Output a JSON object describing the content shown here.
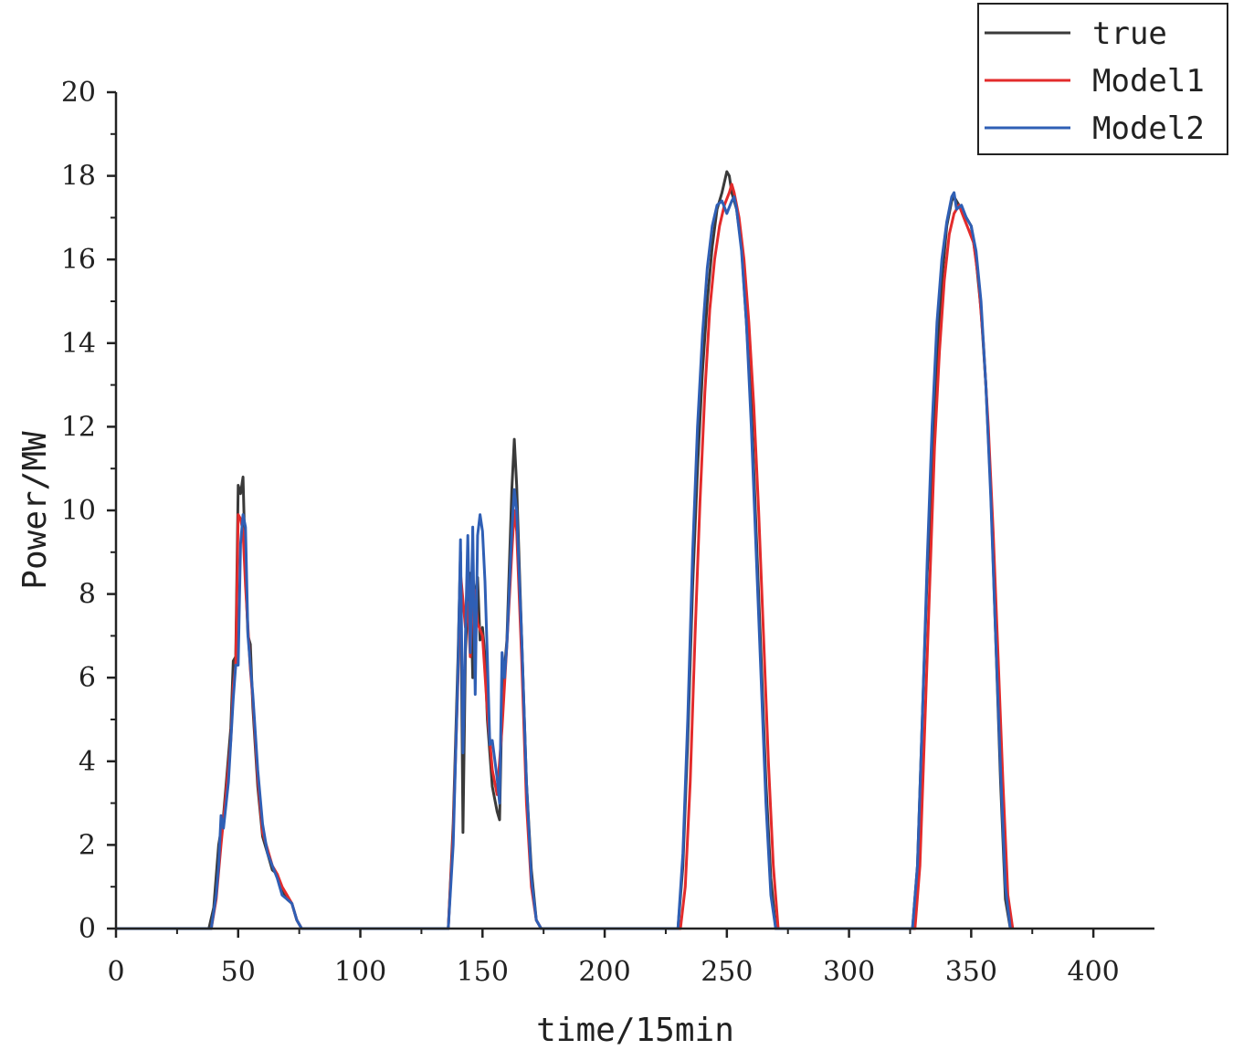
{
  "chart_data": {
    "type": "line",
    "xlabel": "time/15min",
    "ylabel": "Power/MW",
    "xlim": [
      0,
      425
    ],
    "ylim": [
      0,
      20
    ],
    "xticks": [
      0,
      50,
      100,
      150,
      200,
      250,
      300,
      350,
      400
    ],
    "yticks": [
      0,
      2,
      4,
      6,
      8,
      10,
      12,
      14,
      16,
      18,
      20
    ],
    "grid": false,
    "legend_position": "top-right",
    "series": [
      {
        "name": "true",
        "color": "#3a3a3a",
        "points": [
          [
            0,
            0
          ],
          [
            38,
            0
          ],
          [
            40,
            0.5
          ],
          [
            42,
            2.0
          ],
          [
            44,
            2.7
          ],
          [
            45,
            3.4
          ],
          [
            47,
            4.8
          ],
          [
            48,
            6.4
          ],
          [
            49,
            6.5
          ],
          [
            50,
            10.6
          ],
          [
            51,
            10.4
          ],
          [
            52,
            10.8
          ],
          [
            53,
            8.5
          ],
          [
            54,
            7.0
          ],
          [
            55,
            6.8
          ],
          [
            56,
            5.3
          ],
          [
            58,
            3.4
          ],
          [
            60,
            2.2
          ],
          [
            62,
            1.8
          ],
          [
            64,
            1.4
          ],
          [
            66,
            1.3
          ],
          [
            68,
            0.9
          ],
          [
            70,
            0.7
          ],
          [
            72,
            0.6
          ],
          [
            74,
            0.2
          ],
          [
            76,
            0
          ],
          [
            136,
            0
          ],
          [
            138,
            2.5
          ],
          [
            140,
            6.5
          ],
          [
            141,
            9.0
          ],
          [
            142,
            2.3
          ],
          [
            143,
            6.6
          ],
          [
            144,
            8.0
          ],
          [
            145,
            8.5
          ],
          [
            146,
            6.0
          ],
          [
            147,
            8.0
          ],
          [
            148,
            8.4
          ],
          [
            149,
            6.9
          ],
          [
            150,
            7.2
          ],
          [
            151,
            6.5
          ],
          [
            152,
            5.0
          ],
          [
            154,
            3.4
          ],
          [
            156,
            2.8
          ],
          [
            157,
            2.6
          ],
          [
            158,
            5.5
          ],
          [
            160,
            6.9
          ],
          [
            162,
            10.5
          ],
          [
            163,
            11.7
          ],
          [
            164,
            10.6
          ],
          [
            166,
            7.0
          ],
          [
            168,
            3.5
          ],
          [
            170,
            1.4
          ],
          [
            172,
            0.2
          ],
          [
            174,
            0
          ],
          [
            230,
            0
          ],
          [
            232,
            1.5
          ],
          [
            234,
            4.5
          ],
          [
            236,
            8.2
          ],
          [
            238,
            11.0
          ],
          [
            240,
            13.3
          ],
          [
            242,
            15.0
          ],
          [
            244,
            16.3
          ],
          [
            246,
            17.2
          ],
          [
            248,
            17.6
          ],
          [
            250,
            18.1
          ],
          [
            251,
            18.0
          ],
          [
            252,
            17.6
          ],
          [
            254,
            17.2
          ],
          [
            256,
            16.3
          ],
          [
            258,
            14.5
          ],
          [
            260,
            12.5
          ],
          [
            262,
            9.5
          ],
          [
            264,
            6.5
          ],
          [
            266,
            3.5
          ],
          [
            268,
            1.2
          ],
          [
            270,
            0
          ],
          [
            326,
            0
          ],
          [
            328,
            1.5
          ],
          [
            330,
            5.0
          ],
          [
            332,
            8.5
          ],
          [
            334,
            10.5
          ],
          [
            335,
            12.1
          ],
          [
            336,
            13.5
          ],
          [
            338,
            15.5
          ],
          [
            340,
            16.8
          ],
          [
            342,
            17.4
          ],
          [
            343,
            17.5
          ],
          [
            344,
            17.4
          ],
          [
            346,
            17.2
          ],
          [
            348,
            17.0
          ],
          [
            350,
            16.8
          ],
          [
            352,
            16.0
          ],
          [
            354,
            14.8
          ],
          [
            356,
            13.0
          ],
          [
            358,
            10.5
          ],
          [
            360,
            7.0
          ],
          [
            362,
            3.5
          ],
          [
            364,
            0.7
          ],
          [
            366,
            0
          ]
        ]
      },
      {
        "name": "Model1",
        "color": "#e32b2b",
        "points": [
          [
            0,
            0
          ],
          [
            39,
            0
          ],
          [
            41,
            0.7
          ],
          [
            43,
            2.0
          ],
          [
            45,
            3.2
          ],
          [
            47,
            4.5
          ],
          [
            48,
            5.8
          ],
          [
            49,
            6.3
          ],
          [
            50,
            9.9
          ],
          [
            51,
            9.8
          ],
          [
            52,
            9.5
          ],
          [
            53,
            8.2
          ],
          [
            54,
            7.2
          ],
          [
            55,
            6.2
          ],
          [
            56,
            5.5
          ],
          [
            58,
            3.6
          ],
          [
            60,
            2.3
          ],
          [
            62,
            1.9
          ],
          [
            64,
            1.5
          ],
          [
            66,
            1.3
          ],
          [
            68,
            1.0
          ],
          [
            70,
            0.8
          ],
          [
            72,
            0.6
          ],
          [
            74,
            0.2
          ],
          [
            76,
            0
          ],
          [
            136,
            0
          ],
          [
            138,
            2.3
          ],
          [
            140,
            6.0
          ],
          [
            141,
            8.5
          ],
          [
            143,
            7.2
          ],
          [
            144,
            7.8
          ],
          [
            145,
            6.5
          ],
          [
            146,
            8.2
          ],
          [
            147,
            8.0
          ],
          [
            148,
            7.3
          ],
          [
            150,
            7.0
          ],
          [
            152,
            5.2
          ],
          [
            154,
            3.8
          ],
          [
            156,
            3.2
          ],
          [
            158,
            4.8
          ],
          [
            160,
            6.8
          ],
          [
            162,
            9.0
          ],
          [
            163,
            10.0
          ],
          [
            164,
            9.5
          ],
          [
            166,
            6.5
          ],
          [
            168,
            3.0
          ],
          [
            170,
            1.0
          ],
          [
            172,
            0.2
          ],
          [
            174,
            0
          ],
          [
            231,
            0
          ],
          [
            233,
            1.0
          ],
          [
            235,
            3.5
          ],
          [
            237,
            7.0
          ],
          [
            239,
            10.2
          ],
          [
            241,
            12.8
          ],
          [
            243,
            14.8
          ],
          [
            245,
            16.0
          ],
          [
            247,
            16.8
          ],
          [
            249,
            17.3
          ],
          [
            251,
            17.6
          ],
          [
            252,
            17.8
          ],
          [
            253,
            17.6
          ],
          [
            255,
            17.0
          ],
          [
            257,
            16.0
          ],
          [
            259,
            14.5
          ],
          [
            261,
            12.5
          ],
          [
            263,
            10.0
          ],
          [
            265,
            7.0
          ],
          [
            267,
            4.0
          ],
          [
            269,
            1.5
          ],
          [
            271,
            0
          ],
          [
            327,
            0
          ],
          [
            329,
            1.5
          ],
          [
            331,
            4.8
          ],
          [
            333,
            8.2
          ],
          [
            335,
            11.5
          ],
          [
            337,
            13.8
          ],
          [
            339,
            15.5
          ],
          [
            341,
            16.6
          ],
          [
            343,
            17.1
          ],
          [
            345,
            17.3
          ],
          [
            347,
            17.0
          ],
          [
            349,
            16.7
          ],
          [
            351,
            16.4
          ],
          [
            353,
            15.5
          ],
          [
            355,
            14.0
          ],
          [
            357,
            12.0
          ],
          [
            359,
            9.5
          ],
          [
            361,
            6.5
          ],
          [
            363,
            3.5
          ],
          [
            365,
            0.8
          ],
          [
            367,
            0
          ]
        ]
      },
      {
        "name": "Model2",
        "color": "#2f5fb5",
        "points": [
          [
            0,
            0
          ],
          [
            39,
            0
          ],
          [
            41,
            0.8
          ],
          [
            42,
            1.5
          ],
          [
            43,
            2.7
          ],
          [
            44,
            2.4
          ],
          [
            46,
            3.5
          ],
          [
            48,
            5.5
          ],
          [
            49,
            6.3
          ],
          [
            50,
            6.3
          ],
          [
            51,
            9.2
          ],
          [
            52,
            9.9
          ],
          [
            53,
            9.6
          ],
          [
            54,
            7.0
          ],
          [
            55,
            6.3
          ],
          [
            56,
            5.6
          ],
          [
            58,
            3.8
          ],
          [
            60,
            2.5
          ],
          [
            62,
            1.8
          ],
          [
            64,
            1.5
          ],
          [
            66,
            1.2
          ],
          [
            68,
            0.8
          ],
          [
            70,
            0.7
          ],
          [
            72,
            0.6
          ],
          [
            74,
            0.2
          ],
          [
            76,
            0
          ],
          [
            136,
            0
          ],
          [
            138,
            2.0
          ],
          [
            140,
            6.2
          ],
          [
            141,
            9.3
          ],
          [
            142,
            4.2
          ],
          [
            143,
            7.0
          ],
          [
            144,
            9.4
          ],
          [
            145,
            6.6
          ],
          [
            146,
            9.6
          ],
          [
            147,
            5.6
          ],
          [
            148,
            9.4
          ],
          [
            149,
            9.9
          ],
          [
            150,
            9.5
          ],
          [
            151,
            8.3
          ],
          [
            152,
            6.5
          ],
          [
            153,
            4.4
          ],
          [
            154,
            4.5
          ],
          [
            156,
            3.6
          ],
          [
            157,
            3.0
          ],
          [
            158,
            6.6
          ],
          [
            159,
            6.0
          ],
          [
            160,
            6.8
          ],
          [
            162,
            9.5
          ],
          [
            163,
            10.5
          ],
          [
            164,
            10.0
          ],
          [
            166,
            7.0
          ],
          [
            168,
            3.5
          ],
          [
            170,
            1.2
          ],
          [
            172,
            0.2
          ],
          [
            174,
            0
          ],
          [
            230,
            0
          ],
          [
            232,
            1.8
          ],
          [
            234,
            5.0
          ],
          [
            236,
            9.0
          ],
          [
            238,
            12.0
          ],
          [
            240,
            14.2
          ],
          [
            242,
            15.8
          ],
          [
            244,
            16.8
          ],
          [
            246,
            17.3
          ],
          [
            248,
            17.4
          ],
          [
            250,
            17.1
          ],
          [
            252,
            17.4
          ],
          [
            253,
            17.5
          ],
          [
            254,
            17.2
          ],
          [
            256,
            16.2
          ],
          [
            258,
            14.5
          ],
          [
            260,
            12.0
          ],
          [
            262,
            9.0
          ],
          [
            264,
            6.0
          ],
          [
            266,
            3.0
          ],
          [
            268,
            0.8
          ],
          [
            270,
            0
          ],
          [
            326,
            0
          ],
          [
            328,
            1.5
          ],
          [
            330,
            5.0
          ],
          [
            332,
            8.8
          ],
          [
            334,
            12.0
          ],
          [
            336,
            14.5
          ],
          [
            338,
            16.0
          ],
          [
            340,
            16.9
          ],
          [
            342,
            17.5
          ],
          [
            343,
            17.6
          ],
          [
            344,
            17.2
          ],
          [
            346,
            17.3
          ],
          [
            348,
            17.0
          ],
          [
            350,
            16.8
          ],
          [
            352,
            16.2
          ],
          [
            354,
            15.0
          ],
          [
            356,
            13.0
          ],
          [
            358,
            10.3
          ],
          [
            360,
            7.0
          ],
          [
            362,
            3.8
          ],
          [
            364,
            1.0
          ],
          [
            366,
            0
          ]
        ]
      }
    ]
  }
}
